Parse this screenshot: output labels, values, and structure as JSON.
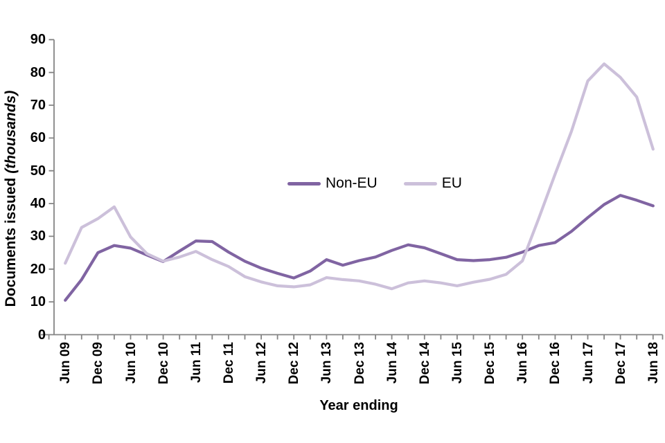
{
  "chart_data": {
    "type": "line",
    "xlabel": "Year ending",
    "ylabel_bold": "Documents issued",
    "ylabel_italic": "(thousands)",
    "ylim": [
      0,
      90
    ],
    "y_tick_step": 10,
    "y_ticks": [
      0,
      10,
      20,
      30,
      40,
      50,
      60,
      70,
      80,
      90
    ],
    "categories": [
      "Jun 09",
      "Sep 09",
      "Dec 09",
      "Mar 10",
      "Jun 10",
      "Sep 10",
      "Dec 10",
      "Mar 11",
      "Jun 11",
      "Sep 11",
      "Dec 11",
      "Mar 12",
      "Jun 12",
      "Sep 12",
      "Dec 12",
      "Mar 13",
      "Jun 13",
      "Sep 13",
      "Dec 13",
      "Mar 14",
      "Jun 14",
      "Sep 14",
      "Dec 14",
      "Mar 15",
      "Jun 15",
      "Sep 15",
      "Dec 15",
      "Mar 16",
      "Jun 16",
      "Sep 16",
      "Dec 16",
      "Mar 17",
      "Jun 17",
      "Sep 17",
      "Dec 17",
      "Mar 18",
      "Jun 18"
    ],
    "x_tick_labels": [
      "Jun 09",
      "Dec 09",
      "Jun 10",
      "Dec 10",
      "Jun 11",
      "Dec 11",
      "Jun 12",
      "Dec 12",
      "Jun 13",
      "Dec 13",
      "Jun 14",
      "Dec 14",
      "Jun 15",
      "Dec 15",
      "Jun 16",
      "Dec 16",
      "Jun 17",
      "Dec 17",
      "Jun 18"
    ],
    "series": [
      {
        "name": "Non-EU",
        "color": "#8064A2",
        "values": [
          10.5,
          16.8,
          25.0,
          27.2,
          26.4,
          24.3,
          22.3,
          25.5,
          28.6,
          28.4,
          25.2,
          22.4,
          20.3,
          18.7,
          17.3,
          19.4,
          22.9,
          21.2,
          22.6,
          23.7,
          25.7,
          27.4,
          26.5,
          24.7,
          22.9,
          22.6,
          22.9,
          23.6,
          25.2,
          27.2,
          28.1,
          31.5,
          35.7,
          39.7,
          42.5,
          41.0,
          39.3
        ]
      },
      {
        "name": "EU",
        "color": "#CCC0DA",
        "values": [
          21.8,
          32.7,
          35.4,
          39.0,
          29.8,
          24.7,
          22.4,
          23.7,
          25.4,
          22.9,
          20.8,
          17.7,
          16.1,
          14.9,
          14.6,
          15.2,
          17.4,
          16.8,
          16.4,
          15.4,
          14.0,
          15.8,
          16.4,
          15.8,
          14.9,
          16.0,
          16.9,
          18.4,
          22.5,
          35.5,
          49.0,
          62.0,
          77.4,
          82.6,
          78.5,
          72.5,
          56.6
        ]
      }
    ],
    "grid": false,
    "legend_position": "inside-top-center",
    "axis_color": "#848484",
    "text_color": "#000000",
    "background": "#FFFFFF"
  }
}
